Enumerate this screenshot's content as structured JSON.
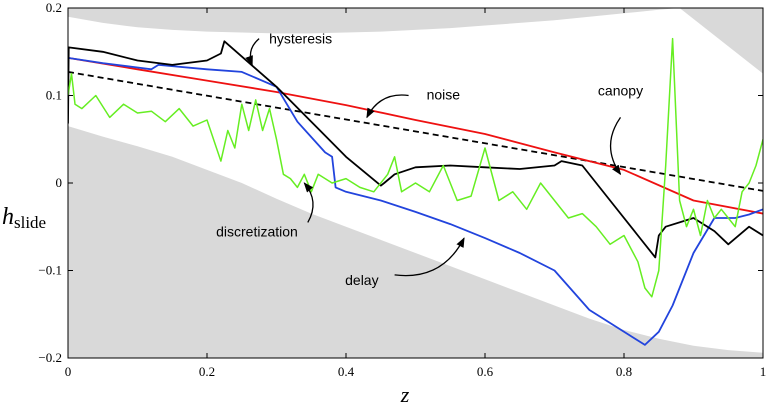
{
  "chart_data": {
    "type": "line",
    "xlabel": "z",
    "ylabel": {
      "main": "h",
      "subscript": "slide"
    },
    "xlim": [
      0,
      1
    ],
    "ylim": [
      -0.2,
      0.2
    ],
    "xticks": [
      0,
      0.2,
      0.4,
      0.6,
      0.8,
      1
    ],
    "xtick_labels": [
      "0",
      "0.2",
      "0.4",
      "0.6",
      "0.8",
      "1"
    ],
    "yticks": [
      -0.2,
      -0.1,
      0,
      0.1,
      0.2
    ],
    "ytick_labels": [
      "−0.2",
      "−0.1",
      "0",
      "0.1",
      "0.2"
    ],
    "background": "#ffffff",
    "envelope": {
      "fill": "#d9d9d9",
      "upper": {
        "x": [
          0,
          0.05,
          0.1,
          0.15,
          0.2,
          0.25,
          0.3,
          0.35,
          0.4,
          0.45,
          0.5,
          0.55,
          0.6,
          0.65,
          0.7,
          0.75,
          0.8,
          0.85,
          0.88,
          0.92,
          0.96,
          1
        ],
        "y": [
          0.19,
          0.183,
          0.178,
          0.175,
          0.173,
          0.172,
          0.171,
          0.171,
          0.172,
          0.173,
          0.175,
          0.177,
          0.18,
          0.183,
          0.186,
          0.19,
          0.194,
          0.198,
          0.2,
          0.175,
          0.15,
          0.125
        ]
      },
      "lower": {
        "x": [
          0,
          0.05,
          0.1,
          0.15,
          0.2,
          0.25,
          0.3,
          0.35,
          0.4,
          0.45,
          0.5,
          0.55,
          0.6,
          0.65,
          0.7,
          0.75,
          0.8,
          0.85,
          0.9,
          0.95,
          1
        ],
        "y": [
          0.065,
          0.053,
          0.042,
          0.03,
          0.015,
          0.0,
          -0.018,
          -0.035,
          -0.05,
          -0.065,
          -0.08,
          -0.095,
          -0.11,
          -0.125,
          -0.14,
          -0.155,
          -0.168,
          -0.178,
          -0.186,
          -0.191,
          -0.194
        ]
      }
    },
    "series": [
      {
        "name": "canopy",
        "color": "#000000",
        "style": "dashed",
        "x": [
          0,
          1
        ],
        "y": [
          0.127,
          -0.009
        ]
      },
      {
        "name": "noise",
        "color": "#ee1111",
        "style": "solid",
        "x": [
          0,
          0.1,
          0.2,
          0.3,
          0.4,
          0.5,
          0.6,
          0.7,
          0.8,
          0.9,
          1
        ],
        "y": [
          0.143,
          0.13,
          0.117,
          0.104,
          0.089,
          0.072,
          0.056,
          0.035,
          0.015,
          -0.02,
          -0.035
        ]
      },
      {
        "name": "delay",
        "color": "#2244dd",
        "style": "solid",
        "x": [
          0,
          0.05,
          0.1,
          0.12,
          0.13,
          0.2,
          0.25,
          0.3,
          0.33,
          0.37,
          0.38,
          0.385,
          0.4,
          0.45,
          0.5,
          0.55,
          0.6,
          0.65,
          0.7,
          0.75,
          0.8,
          0.83,
          0.85,
          0.87,
          0.9,
          0.93,
          0.96,
          0.98,
          1
        ],
        "y": [
          0.143,
          0.137,
          0.132,
          0.13,
          0.135,
          0.13,
          0.127,
          0.11,
          0.07,
          0.035,
          0.03,
          -0.005,
          -0.01,
          -0.02,
          -0.033,
          -0.047,
          -0.063,
          -0.08,
          -0.1,
          -0.145,
          -0.17,
          -0.185,
          -0.17,
          -0.14,
          -0.08,
          -0.04,
          -0.04,
          -0.036,
          -0.03
        ]
      },
      {
        "name": "hysteresis",
        "color": "#000000",
        "style": "solid",
        "x": [
          0,
          0.001,
          0.05,
          0.1,
          0.15,
          0.2,
          0.22,
          0.225,
          0.3,
          0.35,
          0.4,
          0.45,
          0.455,
          0.47,
          0.5,
          0.55,
          0.6,
          0.65,
          0.7,
          0.71,
          0.74,
          0.78,
          0.82,
          0.845,
          0.85,
          0.86,
          0.9,
          0.93,
          0.95,
          0.98,
          1
        ],
        "y": [
          0.068,
          0.155,
          0.15,
          0.14,
          0.135,
          0.14,
          0.148,
          0.162,
          0.11,
          0.07,
          0.03,
          -0.003,
          0.0,
          0.01,
          0.018,
          0.02,
          0.018,
          0.016,
          0.02,
          0.025,
          0.02,
          -0.02,
          -0.06,
          -0.085,
          -0.06,
          -0.05,
          -0.04,
          -0.055,
          -0.07,
          -0.05,
          -0.06
        ]
      },
      {
        "name": "discretization",
        "color": "#66ee22",
        "style": "solid",
        "x": [
          0,
          0.005,
          0.01,
          0.02,
          0.04,
          0.06,
          0.08,
          0.1,
          0.12,
          0.14,
          0.16,
          0.18,
          0.2,
          0.22,
          0.23,
          0.24,
          0.25,
          0.26,
          0.27,
          0.28,
          0.29,
          0.3,
          0.31,
          0.32,
          0.33,
          0.34,
          0.35,
          0.36,
          0.38,
          0.4,
          0.42,
          0.44,
          0.46,
          0.47,
          0.48,
          0.5,
          0.52,
          0.54,
          0.56,
          0.58,
          0.6,
          0.62,
          0.64,
          0.66,
          0.68,
          0.7,
          0.72,
          0.74,
          0.76,
          0.78,
          0.8,
          0.82,
          0.83,
          0.84,
          0.85,
          0.86,
          0.87,
          0.88,
          0.89,
          0.9,
          0.91,
          0.92,
          0.93,
          0.94,
          0.95,
          0.96,
          0.97,
          0.98,
          0.99,
          1
        ],
        "y": [
          0.1,
          0.125,
          0.09,
          0.085,
          0.1,
          0.075,
          0.09,
          0.08,
          0.082,
          0.07,
          0.085,
          0.065,
          0.072,
          0.025,
          0.06,
          0.04,
          0.09,
          0.06,
          0.095,
          0.06,
          0.085,
          0.05,
          0.01,
          0.005,
          -0.005,
          0.01,
          -0.01,
          0.01,
          0.0,
          0.005,
          -0.005,
          -0.01,
          0.01,
          0.03,
          -0.01,
          0.0,
          -0.01,
          0.02,
          -0.02,
          -0.015,
          0.04,
          -0.02,
          -0.01,
          -0.03,
          0.0,
          -0.02,
          -0.04,
          -0.035,
          -0.05,
          -0.07,
          -0.06,
          -0.09,
          -0.12,
          -0.13,
          -0.1,
          0.02,
          0.165,
          -0.02,
          -0.05,
          -0.03,
          -0.06,
          -0.02,
          -0.04,
          -0.03,
          -0.04,
          -0.05,
          -0.01,
          0.0,
          0.02,
          0.05
        ]
      }
    ],
    "annotations": [
      {
        "text": "hysteresis",
        "series": "hysteresis",
        "from": [
          0.275,
          0.165
        ],
        "to": [
          0.265,
          0.135
        ]
      },
      {
        "text": "noise",
        "series": "noise",
        "from": [
          0.49,
          0.1
        ],
        "to": [
          0.43,
          0.075
        ]
      },
      {
        "text": "canopy",
        "series": "canopy",
        "from": [
          0.795,
          0.075
        ],
        "to": [
          0.795,
          0.01
        ]
      },
      {
        "text": "discretization",
        "series": "discretization",
        "from": [
          0.345,
          -0.045
        ],
        "to": [
          0.34,
          0.0
        ]
      },
      {
        "text": "delay",
        "series": "delay",
        "from": [
          0.47,
          -0.105
        ],
        "to": [
          0.57,
          -0.063
        ]
      }
    ]
  }
}
